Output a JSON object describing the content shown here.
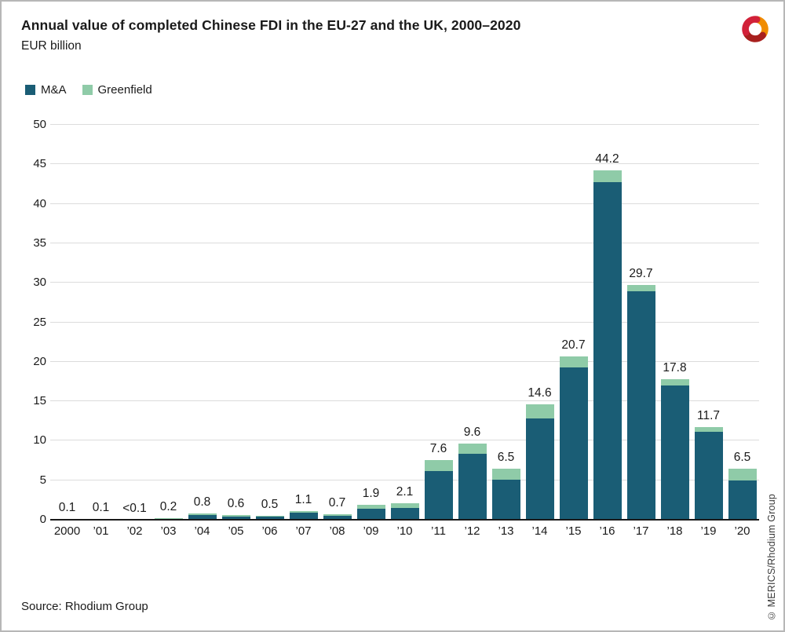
{
  "header": {
    "title": "Annual value of completed Chinese FDI in the EU-27 and the UK, 2000–2020",
    "subtitle": "EUR billion"
  },
  "logo": {
    "name": "merics-logo",
    "colors": {
      "orange": "#F08C00",
      "red": "#D22139",
      "dark_red": "#A8201E",
      "magenta": "#E3015F"
    }
  },
  "legend": [
    {
      "label": "M&A",
      "color": "#1a5d75"
    },
    {
      "label": "Greenfield",
      "color": "#8fcba8"
    }
  ],
  "chart_data": {
    "type": "bar",
    "stacked": true,
    "title": "Annual value of completed Chinese FDI in the EU-27 and the UK, 2000-2020",
    "ylabel": "EUR billion",
    "xlabel": "",
    "ylim": [
      0,
      50
    ],
    "ytick_step": 5,
    "grid": true,
    "legend_position": "top-left",
    "categories": [
      "2000",
      "’01",
      "’02",
      "’03",
      "’04",
      "’05",
      "’06",
      "’07",
      "’08",
      "’09",
      "’10",
      "’11",
      "’12",
      "’13",
      "’14",
      "’15",
      "’16",
      "’17",
      "’18",
      "’19",
      "’20"
    ],
    "series": [
      {
        "name": "M&A",
        "color": "#1a5d75",
        "values": [
          0.1,
          0.1,
          0.05,
          0.1,
          0.6,
          0.4,
          0.45,
          0.9,
          0.45,
          1.4,
          1.5,
          6.2,
          8.4,
          5.1,
          12.8,
          19.3,
          42.7,
          28.9,
          17.0,
          11.1,
          5.0
        ]
      },
      {
        "name": "Greenfield",
        "color": "#8fcba8",
        "values": [
          0.0,
          0.0,
          0.0,
          0.1,
          0.2,
          0.2,
          0.05,
          0.2,
          0.25,
          0.5,
          0.6,
          1.4,
          1.2,
          1.4,
          1.8,
          1.4,
          1.5,
          0.8,
          0.8,
          0.6,
          1.5
        ]
      }
    ],
    "totals": [
      0.1,
      0.1,
      0.1,
      0.2,
      0.8,
      0.6,
      0.5,
      1.1,
      0.7,
      1.9,
      2.1,
      7.6,
      9.6,
      6.5,
      14.6,
      20.7,
      44.2,
      29.7,
      17.8,
      11.7,
      6.5
    ],
    "total_labels": [
      "0.1",
      "0.1",
      "<0.1",
      "0.2",
      "0.8",
      "0.6",
      "0.5",
      "1.1",
      "0.7",
      "1.9",
      "2.1",
      "7.6",
      "9.6",
      "6.5",
      "14.6",
      "20.7",
      "44.2",
      "29.7",
      "17.8",
      "11.7",
      "6.5"
    ],
    "yticks": [
      0,
      5,
      10,
      15,
      20,
      25,
      30,
      35,
      40,
      45,
      50
    ]
  },
  "footer": {
    "source": "Source: Rhodium Group"
  },
  "watermark": "© MERICS/Rhodium Group"
}
